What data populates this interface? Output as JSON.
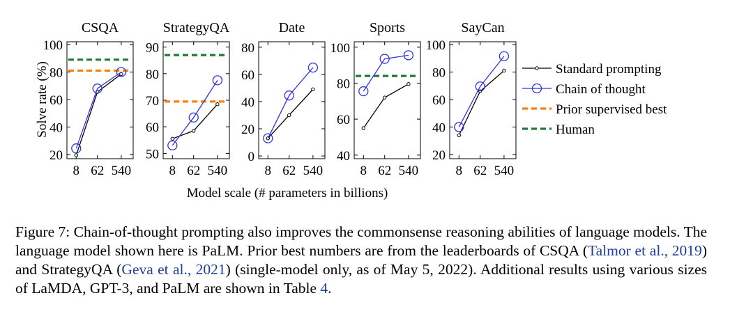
{
  "chart_data": {
    "type": "line",
    "shared_xlabel": "Model scale (# parameters in billions)",
    "ylabel": "Solve rate (%)",
    "legend": {
      "placement": "right",
      "entries": [
        {
          "label": "Standard prompting",
          "color": "#000000",
          "style": "solid-dot"
        },
        {
          "label": "Chain of thought",
          "color": "#3333dd",
          "style": "solid-circle"
        },
        {
          "label": "Prior supervised best",
          "color": "#ff8000",
          "style": "dashed"
        },
        {
          "label": "Human",
          "color": "#1e7a3c",
          "style": "dashed"
        }
      ]
    },
    "panels": [
      {
        "title": "CSQA",
        "categories": [
          "8",
          "62",
          "540"
        ],
        "ylim": [
          17,
          102
        ],
        "yticks": [
          20,
          40,
          60,
          80,
          100
        ],
        "series": [
          {
            "name": "Standard prompting",
            "values": [
              19.5,
              65.5,
              78.5
            ]
          },
          {
            "name": "Chain of thought",
            "values": [
              24.5,
              68,
              80
            ]
          }
        ],
        "prior_best": 81,
        "human": 89
      },
      {
        "title": "StrategyQA",
        "categories": [
          "8",
          "62",
          "540"
        ],
        "ylim": [
          48,
          92
        ],
        "yticks": [
          50,
          60,
          70,
          80,
          90
        ],
        "series": [
          {
            "name": "Standard prompting",
            "values": [
              55.5,
              58.5,
              68.5
            ]
          },
          {
            "name": "Chain of thought",
            "values": [
              53,
              63.5,
              77.5
            ]
          }
        ],
        "prior_best": 69.5,
        "human": 87
      },
      {
        "title": "Date",
        "categories": [
          "8",
          "62",
          "540"
        ],
        "ylim": [
          -2,
          84
        ],
        "yticks": [
          0,
          20,
          40,
          60,
          80
        ],
        "series": [
          {
            "name": "Standard prompting",
            "values": [
              13,
              30,
              49
            ]
          },
          {
            "name": "Chain of thought",
            "values": [
              13,
              44.5,
              65
            ]
          }
        ]
      },
      {
        "title": "Sports",
        "categories": [
          "8",
          "62",
          "540"
        ],
        "ylim": [
          38,
          103
        ],
        "yticks": [
          40,
          60,
          80,
          100
        ],
        "series": [
          {
            "name": "Standard prompting",
            "values": [
              55,
              72,
              79.5
            ]
          },
          {
            "name": "Chain of thought",
            "values": [
              75.5,
              93.5,
              95.5
            ]
          }
        ],
        "human": 84
      },
      {
        "title": "SayCan",
        "categories": [
          "8",
          "62",
          "540"
        ],
        "ylim": [
          17,
          102
        ],
        "yticks": [
          20,
          40,
          60,
          80,
          100
        ],
        "series": [
          {
            "name": "Standard prompting",
            "values": [
              34,
              66,
              81
            ]
          },
          {
            "name": "Chain of thought",
            "values": [
              40,
              69.5,
              91.5
            ]
          }
        ]
      }
    ]
  },
  "caption": {
    "prefix": "Figure 7:   Chain-of-thought prompting also improves the commonsense reasoning abilities of language models. The language model shown here is PaLM. Prior best numbers are from the leaderboards of CSQA (",
    "cite1": "Talmor et al., 2019",
    "mid1": ") and StrategyQA (",
    "cite2": "Geva et al., 2021",
    "mid2": ") (single-model only, as of May 5, 2022). Additional results using various sizes of LaMDA, GPT-3, and PaLM are shown in Table ",
    "table_ref": "4",
    "suffix": "."
  }
}
